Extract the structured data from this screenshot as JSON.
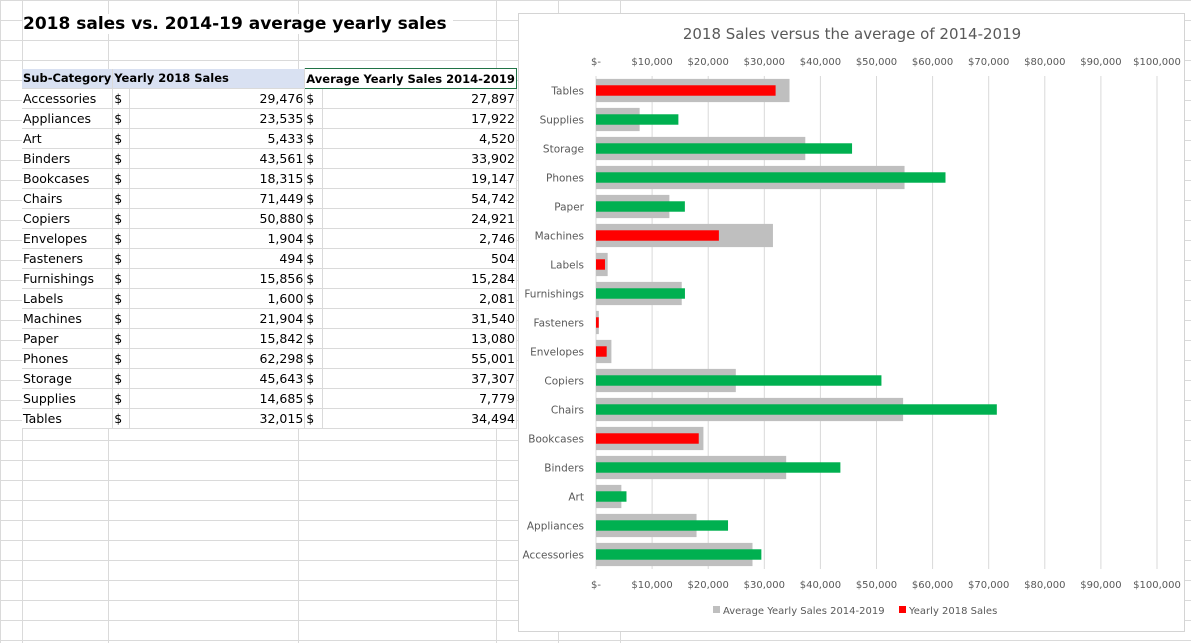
{
  "sheet": {
    "title": "2018 sales vs. 2014-19 average yearly sales",
    "headers": [
      "Sub-Category",
      "Yearly 2018 Sales",
      "Average Yearly Sales 2014-2019"
    ],
    "currency_symbol": "$",
    "rows": [
      {
        "name": "Accessories",
        "y2018": "29,476",
        "avg": "27,897"
      },
      {
        "name": "Appliances",
        "y2018": "23,535",
        "avg": "17,922"
      },
      {
        "name": "Art",
        "y2018": "5,433",
        "avg": "4,520"
      },
      {
        "name": "Binders",
        "y2018": "43,561",
        "avg": "33,902"
      },
      {
        "name": "Bookcases",
        "y2018": "18,315",
        "avg": "19,147"
      },
      {
        "name": "Chairs",
        "y2018": "71,449",
        "avg": "54,742"
      },
      {
        "name": "Copiers",
        "y2018": "50,880",
        "avg": "24,921"
      },
      {
        "name": "Envelopes",
        "y2018": "1,904",
        "avg": "2,746"
      },
      {
        "name": "Fasteners",
        "y2018": "494",
        "avg": "504"
      },
      {
        "name": "Furnishings",
        "y2018": "15,856",
        "avg": "15,284"
      },
      {
        "name": "Labels",
        "y2018": "1,600",
        "avg": "2,081"
      },
      {
        "name": "Machines",
        "y2018": "21,904",
        "avg": "31,540"
      },
      {
        "name": "Paper",
        "y2018": "15,842",
        "avg": "13,080"
      },
      {
        "name": "Phones",
        "y2018": "62,298",
        "avg": "55,001"
      },
      {
        "name": "Storage",
        "y2018": "45,643",
        "avg": "37,307"
      },
      {
        "name": "Supplies",
        "y2018": "14,685",
        "avg": "7,779"
      },
      {
        "name": "Tables",
        "y2018": "32,015",
        "avg": "34,494"
      }
    ]
  },
  "chart_data": {
    "type": "bar",
    "orientation": "horizontal",
    "title": "2018 Sales versus the average of 2014-2019",
    "categories": [
      "Tables",
      "Supplies",
      "Storage",
      "Phones",
      "Paper",
      "Machines",
      "Labels",
      "Furnishings",
      "Fasteners",
      "Envelopes",
      "Copiers",
      "Chairs",
      "Bookcases",
      "Binders",
      "Art",
      "Appliances",
      "Accessories"
    ],
    "series": [
      {
        "name": "Average Yearly Sales 2014-2019",
        "color": "#bfbfbf",
        "values": [
          34494,
          7779,
          37307,
          55001,
          13080,
          31540,
          2081,
          15284,
          504,
          2746,
          24921,
          54742,
          19147,
          33902,
          4520,
          17922,
          27897
        ]
      },
      {
        "name": "Yearly 2018 Sales",
        "color": "#ff0000",
        "color_above_avg": "#00b050",
        "values": [
          32015,
          14685,
          45643,
          62298,
          15842,
          21904,
          1600,
          15856,
          494,
          1904,
          50880,
          71449,
          18315,
          43561,
          5433,
          23535,
          29476
        ]
      }
    ],
    "xlim": [
      0,
      100000
    ],
    "x_ticks": [
      0,
      10000,
      20000,
      30000,
      40000,
      50000,
      60000,
      70000,
      80000,
      90000,
      100000
    ],
    "x_tick_labels": [
      "$-",
      "$10,000",
      "$20,000",
      "$30,000",
      "$40,000",
      "$50,000",
      "$60,000",
      "$70,000",
      "$80,000",
      "$90,000",
      "$100,000"
    ],
    "x_axis_top_and_bottom": true,
    "grid": true,
    "legend": "bottom",
    "legend_entries": [
      "Average Yearly Sales 2014-2019",
      "Yearly 2018 Sales"
    ]
  }
}
